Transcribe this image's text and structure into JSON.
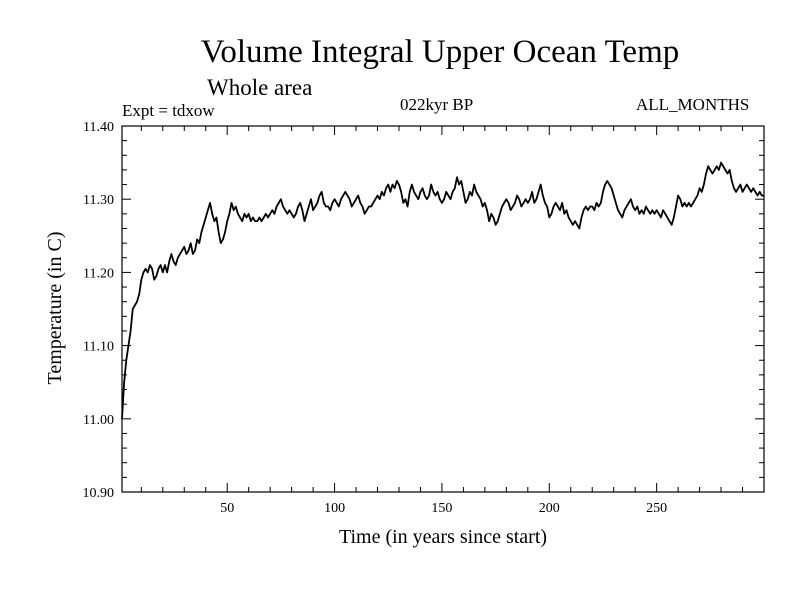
{
  "chart_data": {
    "type": "line",
    "title": "Volume Integral Upper Ocean Temp",
    "subtitle": "Whole area",
    "annotations": {
      "experiment": "Expt = tdxow",
      "period": "022kyr BP",
      "months": "ALL_MONTHS"
    },
    "xlabel": "Time (in years since start)",
    "ylabel": "Temperature (in C)",
    "xlim": [
      1,
      300
    ],
    "ylim": [
      10.9,
      11.4
    ],
    "x_ticks": [
      50,
      100,
      150,
      200,
      250
    ],
    "y_ticks": [
      10.9,
      11.0,
      11.1,
      11.2,
      11.3,
      11.4
    ],
    "y_tick_labels": [
      "10.90",
      "11.00",
      "11.10",
      "11.20",
      "11.30",
      "11.40"
    ],
    "grid": false,
    "legend": "none",
    "series": [
      {
        "color": "#000000",
        "points": [
          [
            1,
            11.0
          ],
          [
            2,
            11.05
          ],
          [
            3,
            11.08
          ],
          [
            4,
            11.1
          ],
          [
            5,
            11.12
          ],
          [
            6,
            11.15
          ],
          [
            7,
            11.155
          ],
          [
            8,
            11.16
          ],
          [
            9,
            11.17
          ],
          [
            10,
            11.19
          ],
          [
            11,
            11.2
          ],
          [
            12,
            11.205
          ],
          [
            13,
            11.2
          ],
          [
            14,
            11.21
          ],
          [
            15,
            11.205
          ],
          [
            16,
            11.19
          ],
          [
            17,
            11.195
          ],
          [
            18,
            11.205
          ],
          [
            19,
            11.21
          ],
          [
            20,
            11.2
          ],
          [
            21,
            11.21
          ],
          [
            22,
            11.2
          ],
          [
            23,
            11.215
          ],
          [
            24,
            11.225
          ],
          [
            25,
            11.215
          ],
          [
            26,
            11.21
          ],
          [
            27,
            11.22
          ],
          [
            28,
            11.225
          ],
          [
            29,
            11.23
          ],
          [
            30,
            11.235
          ],
          [
            31,
            11.225
          ],
          [
            32,
            11.23
          ],
          [
            33,
            11.24
          ],
          [
            34,
            11.225
          ],
          [
            35,
            11.23
          ],
          [
            36,
            11.245
          ],
          [
            37,
            11.24
          ],
          [
            38,
            11.255
          ],
          [
            39,
            11.265
          ],
          [
            40,
            11.275
          ],
          [
            41,
            11.285
          ],
          [
            42,
            11.295
          ],
          [
            43,
            11.28
          ],
          [
            44,
            11.27
          ],
          [
            45,
            11.275
          ],
          [
            46,
            11.255
          ],
          [
            47,
            11.24
          ],
          [
            48,
            11.245
          ],
          [
            49,
            11.255
          ],
          [
            50,
            11.27
          ],
          [
            51,
            11.28
          ],
          [
            52,
            11.295
          ],
          [
            53,
            11.285
          ],
          [
            54,
            11.29
          ],
          [
            55,
            11.28
          ],
          [
            56,
            11.275
          ],
          [
            57,
            11.27
          ],
          [
            58,
            11.28
          ],
          [
            59,
            11.275
          ],
          [
            60,
            11.28
          ],
          [
            61,
            11.27
          ],
          [
            62,
            11.275
          ],
          [
            63,
            11.27
          ],
          [
            64,
            11.27
          ],
          [
            65,
            11.275
          ],
          [
            66,
            11.27
          ],
          [
            67,
            11.275
          ],
          [
            68,
            11.28
          ],
          [
            69,
            11.275
          ],
          [
            70,
            11.28
          ],
          [
            71,
            11.285
          ],
          [
            72,
            11.28
          ],
          [
            73,
            11.29
          ],
          [
            74,
            11.295
          ],
          [
            75,
            11.3
          ],
          [
            76,
            11.29
          ],
          [
            77,
            11.285
          ],
          [
            78,
            11.28
          ],
          [
            79,
            11.285
          ],
          [
            80,
            11.28
          ],
          [
            81,
            11.275
          ],
          [
            82,
            11.28
          ],
          [
            83,
            11.29
          ],
          [
            84,
            11.295
          ],
          [
            85,
            11.285
          ],
          [
            86,
            11.27
          ],
          [
            87,
            11.28
          ],
          [
            88,
            11.29
          ],
          [
            89,
            11.3
          ],
          [
            90,
            11.285
          ],
          [
            91,
            11.29
          ],
          [
            92,
            11.295
          ],
          [
            93,
            11.305
          ],
          [
            94,
            11.31
          ],
          [
            95,
            11.295
          ],
          [
            96,
            11.29
          ],
          [
            97,
            11.29
          ],
          [
            98,
            11.285
          ],
          [
            99,
            11.295
          ],
          [
            100,
            11.3
          ],
          [
            101,
            11.295
          ],
          [
            102,
            11.29
          ],
          [
            103,
            11.3
          ],
          [
            104,
            11.305
          ],
          [
            105,
            11.31
          ],
          [
            106,
            11.305
          ],
          [
            107,
            11.3
          ],
          [
            108,
            11.29
          ],
          [
            109,
            11.295
          ],
          [
            110,
            11.3
          ],
          [
            111,
            11.305
          ],
          [
            112,
            11.295
          ],
          [
            113,
            11.29
          ],
          [
            114,
            11.28
          ],
          [
            115,
            11.285
          ],
          [
            116,
            11.29
          ],
          [
            117,
            11.29
          ],
          [
            118,
            11.295
          ],
          [
            119,
            11.3
          ],
          [
            120,
            11.305
          ],
          [
            121,
            11.3
          ],
          [
            122,
            11.31
          ],
          [
            123,
            11.305
          ],
          [
            124,
            11.315
          ],
          [
            125,
            11.32
          ],
          [
            126,
            11.31
          ],
          [
            127,
            11.32
          ],
          [
            128,
            11.315
          ],
          [
            129,
            11.325
          ],
          [
            130,
            11.32
          ],
          [
            131,
            11.31
          ],
          [
            132,
            11.295
          ],
          [
            133,
            11.3
          ],
          [
            134,
            11.29
          ],
          [
            135,
            11.31
          ],
          [
            136,
            11.32
          ],
          [
            137,
            11.31
          ],
          [
            138,
            11.305
          ],
          [
            139,
            11.3
          ],
          [
            140,
            11.31
          ],
          [
            141,
            11.315
          ],
          [
            142,
            11.305
          ],
          [
            143,
            11.3
          ],
          [
            144,
            11.305
          ],
          [
            145,
            11.32
          ],
          [
            146,
            11.31
          ],
          [
            147,
            11.305
          ],
          [
            148,
            11.31
          ],
          [
            149,
            11.3
          ],
          [
            150,
            11.295
          ],
          [
            151,
            11.3
          ],
          [
            152,
            11.31
          ],
          [
            153,
            11.305
          ],
          [
            154,
            11.3
          ],
          [
            155,
            11.31
          ],
          [
            156,
            11.315
          ],
          [
            157,
            11.33
          ],
          [
            158,
            11.32
          ],
          [
            159,
            11.325
          ],
          [
            160,
            11.31
          ],
          [
            161,
            11.295
          ],
          [
            162,
            11.3
          ],
          [
            163,
            11.31
          ],
          [
            164,
            11.305
          ],
          [
            165,
            11.32
          ],
          [
            166,
            11.31
          ],
          [
            167,
            11.305
          ],
          [
            168,
            11.3
          ],
          [
            169,
            11.29
          ],
          [
            170,
            11.295
          ],
          [
            171,
            11.285
          ],
          [
            172,
            11.27
          ],
          [
            173,
            11.28
          ],
          [
            174,
            11.275
          ],
          [
            175,
            11.265
          ],
          [
            176,
            11.27
          ],
          [
            177,
            11.28
          ],
          [
            178,
            11.29
          ],
          [
            179,
            11.295
          ],
          [
            180,
            11.3
          ],
          [
            181,
            11.295
          ],
          [
            182,
            11.285
          ],
          [
            183,
            11.29
          ],
          [
            184,
            11.295
          ],
          [
            185,
            11.305
          ],
          [
            186,
            11.3
          ],
          [
            187,
            11.29
          ],
          [
            188,
            11.295
          ],
          [
            189,
            11.3
          ],
          [
            190,
            11.295
          ],
          [
            191,
            11.3
          ],
          [
            192,
            11.31
          ],
          [
            193,
            11.295
          ],
          [
            194,
            11.3
          ],
          [
            195,
            11.31
          ],
          [
            196,
            11.32
          ],
          [
            197,
            11.305
          ],
          [
            198,
            11.295
          ],
          [
            199,
            11.29
          ],
          [
            200,
            11.275
          ],
          [
            201,
            11.28
          ],
          [
            202,
            11.29
          ],
          [
            203,
            11.295
          ],
          [
            204,
            11.29
          ],
          [
            205,
            11.285
          ],
          [
            206,
            11.295
          ],
          [
            207,
            11.28
          ],
          [
            208,
            11.285
          ],
          [
            209,
            11.275
          ],
          [
            210,
            11.27
          ],
          [
            211,
            11.265
          ],
          [
            212,
            11.27
          ],
          [
            213,
            11.265
          ],
          [
            214,
            11.26
          ],
          [
            215,
            11.275
          ],
          [
            216,
            11.285
          ],
          [
            217,
            11.29
          ],
          [
            218,
            11.285
          ],
          [
            219,
            11.29
          ],
          [
            220,
            11.29
          ],
          [
            221,
            11.285
          ],
          [
            222,
            11.295
          ],
          [
            223,
            11.29
          ],
          [
            224,
            11.295
          ],
          [
            225,
            11.31
          ],
          [
            226,
            11.32
          ],
          [
            227,
            11.325
          ],
          [
            228,
            11.32
          ],
          [
            229,
            11.315
          ],
          [
            230,
            11.305
          ],
          [
            231,
            11.295
          ],
          [
            232,
            11.285
          ],
          [
            233,
            11.28
          ],
          [
            234,
            11.275
          ],
          [
            235,
            11.285
          ],
          [
            236,
            11.29
          ],
          [
            237,
            11.295
          ],
          [
            238,
            11.3
          ],
          [
            239,
            11.29
          ],
          [
            240,
            11.285
          ],
          [
            241,
            11.29
          ],
          [
            242,
            11.28
          ],
          [
            243,
            11.285
          ],
          [
            244,
            11.28
          ],
          [
            245,
            11.29
          ],
          [
            246,
            11.285
          ],
          [
            247,
            11.28
          ],
          [
            248,
            11.285
          ],
          [
            249,
            11.28
          ],
          [
            250,
            11.285
          ],
          [
            251,
            11.28
          ],
          [
            252,
            11.275
          ],
          [
            253,
            11.285
          ],
          [
            254,
            11.28
          ],
          [
            255,
            11.275
          ],
          [
            256,
            11.27
          ],
          [
            257,
            11.265
          ],
          [
            258,
            11.275
          ],
          [
            259,
            11.29
          ],
          [
            260,
            11.305
          ],
          [
            261,
            11.3
          ],
          [
            262,
            11.29
          ],
          [
            263,
            11.295
          ],
          [
            264,
            11.29
          ],
          [
            265,
            11.295
          ],
          [
            266,
            11.29
          ],
          [
            267,
            11.295
          ],
          [
            268,
            11.3
          ],
          [
            269,
            11.305
          ],
          [
            270,
            11.315
          ],
          [
            271,
            11.31
          ],
          [
            272,
            11.32
          ],
          [
            273,
            11.335
          ],
          [
            274,
            11.345
          ],
          [
            275,
            11.34
          ],
          [
            276,
            11.335
          ],
          [
            277,
            11.34
          ],
          [
            278,
            11.345
          ],
          [
            279,
            11.34
          ],
          [
            280,
            11.35
          ],
          [
            281,
            11.345
          ],
          [
            282,
            11.34
          ],
          [
            283,
            11.335
          ],
          [
            284,
            11.34
          ],
          [
            285,
            11.325
          ],
          [
            286,
            11.315
          ],
          [
            287,
            11.31
          ],
          [
            288,
            11.315
          ],
          [
            289,
            11.32
          ],
          [
            290,
            11.31
          ],
          [
            291,
            11.315
          ],
          [
            292,
            11.32
          ],
          [
            293,
            11.315
          ],
          [
            294,
            11.31
          ],
          [
            295,
            11.315
          ],
          [
            296,
            11.31
          ],
          [
            297,
            11.305
          ],
          [
            298,
            11.31
          ],
          [
            299,
            11.305
          ],
          [
            300,
            11.305
          ]
        ]
      }
    ]
  }
}
